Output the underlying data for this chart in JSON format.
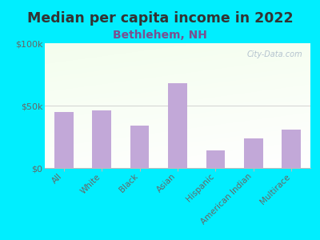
{
  "title": "Median per capita income in 2022",
  "subtitle": "Bethlehem, NH",
  "categories": [
    "All",
    "White",
    "Black",
    "Asian",
    "Hispanic",
    "American Indian",
    "Multirace"
  ],
  "values": [
    45000,
    46000,
    34000,
    68000,
    14000,
    24000,
    31000
  ],
  "bar_color": "#c2a8d8",
  "ylim": [
    0,
    100000
  ],
  "yticks": [
    0,
    50000,
    100000
  ],
  "ytick_labels": [
    "$0",
    "$50k",
    "$100k"
  ],
  "background_outer": "#00eeff",
  "title_color": "#333333",
  "subtitle_color": "#7a5090",
  "tick_label_color": "#666666",
  "watermark": "City-Data.com"
}
